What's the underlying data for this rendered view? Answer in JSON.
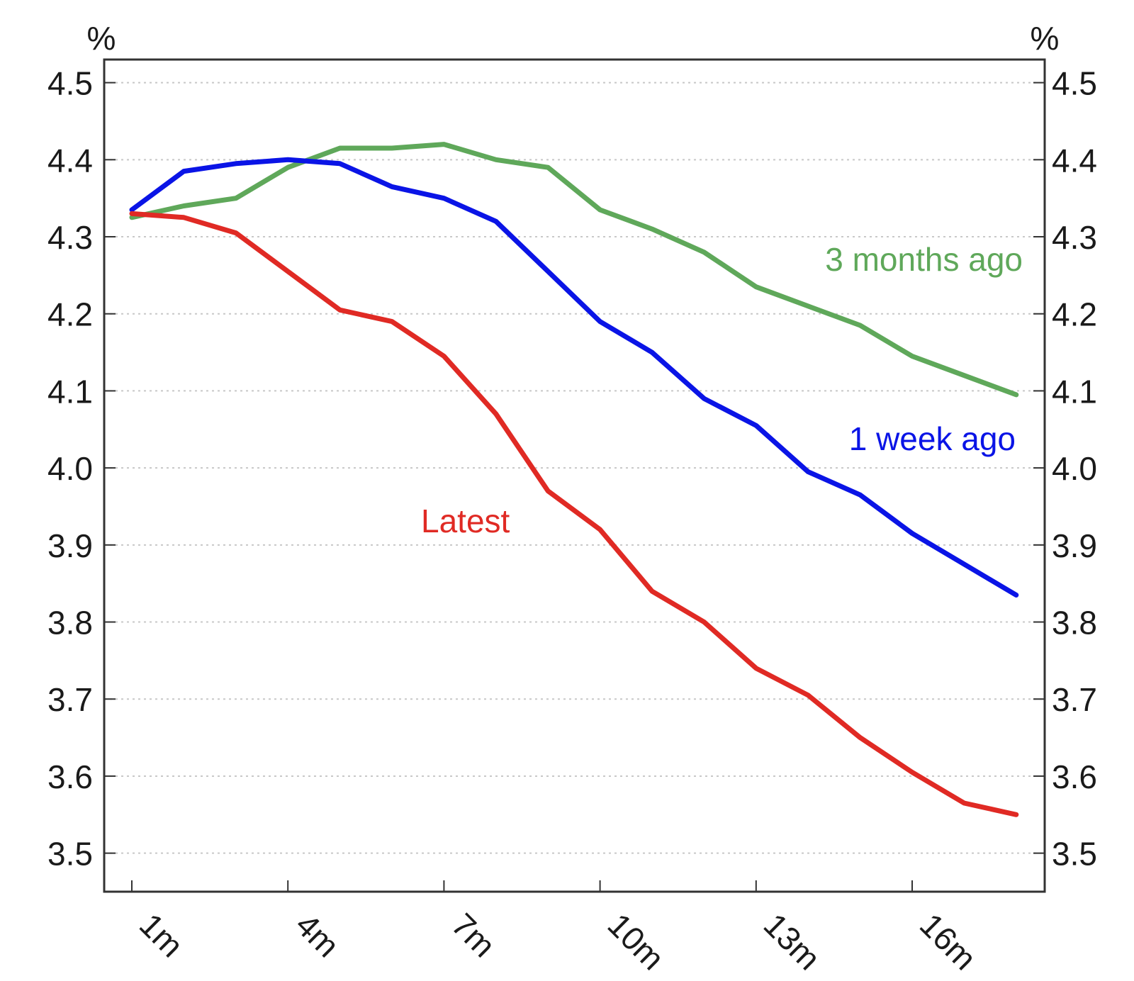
{
  "chart_data": {
    "type": "line",
    "x": [
      1,
      2,
      3,
      4,
      5,
      6,
      7,
      8,
      9,
      10,
      11,
      12,
      13,
      14,
      15,
      16,
      17,
      18
    ],
    "x_tick_values": [
      1,
      4,
      7,
      10,
      13,
      16
    ],
    "x_tick_labels": [
      "1m",
      "4m",
      "7m",
      "10m",
      "13m",
      "16m"
    ],
    "ylim": [
      3.45,
      4.53
    ],
    "y_ticks": [
      3.5,
      3.6,
      3.7,
      3.8,
      3.9,
      4.0,
      4.1,
      4.2,
      4.3,
      4.4,
      4.5
    ],
    "y_tick_labels": [
      "3.5",
      "3.6",
      "3.7",
      "3.8",
      "3.9",
      "4.0",
      "4.1",
      "4.2",
      "4.3",
      "4.4",
      "4.5"
    ],
    "y_unit_left": "%",
    "y_unit_right": "%",
    "grid": true,
    "series": [
      {
        "name": "3 months ago",
        "color": "#5fa85a",
        "values": [
          4.325,
          4.34,
          4.35,
          4.39,
          4.415,
          4.415,
          4.42,
          4.4,
          4.39,
          4.335,
          4.31,
          4.28,
          4.235,
          4.21,
          4.185,
          4.145,
          4.12,
          4.095
        ]
      },
      {
        "name": "1 week ago",
        "color": "#0a14e6",
        "values": [
          4.335,
          4.385,
          4.395,
          4.4,
          4.395,
          4.365,
          4.35,
          4.32,
          4.255,
          4.19,
          4.15,
          4.09,
          4.055,
          3.995,
          3.965,
          3.915,
          3.875,
          3.835
        ]
      },
      {
        "name": "Latest",
        "color": "#e02a24",
        "values": [
          4.33,
          4.325,
          4.305,
          4.255,
          4.205,
          4.19,
          4.145,
          4.07,
          3.97,
          3.92,
          3.84,
          3.8,
          3.74,
          3.705,
          3.65,
          3.605,
          3.565,
          3.55
        ]
      }
    ]
  }
}
